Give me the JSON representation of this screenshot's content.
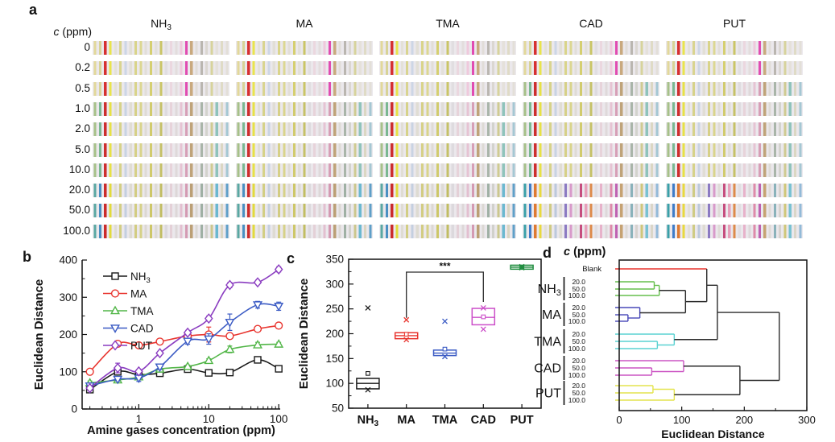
{
  "figure": {
    "panel_labels": {
      "a": "a",
      "b": "b",
      "c": "c",
      "d": "d"
    }
  },
  "panel_a": {
    "conc_header": {
      "italic": "c",
      "rest": " (ppm)"
    },
    "row_labels": [
      "0",
      "0.2",
      "0.5",
      "1.0",
      "2.0",
      "5.0",
      "10.0",
      "20.0",
      "50.0",
      "100.0"
    ],
    "gases": [
      {
        "key": "NH3",
        "name": [
          {
            "t": "NH"
          },
          {
            "t": "3",
            "sub": true
          }
        ]
      },
      {
        "key": "MA",
        "name": [
          {
            "t": "MA"
          }
        ]
      },
      {
        "key": "TMA",
        "name": [
          {
            "t": "TMA"
          }
        ]
      },
      {
        "key": "CAD",
        "name": [
          {
            "t": "CAD"
          }
        ]
      },
      {
        "key": "PUT",
        "name": [
          {
            "t": "PUT"
          }
        ]
      }
    ],
    "strip_bg": "#ebe8ec",
    "palettes": {
      "low": [
        "#e2d89a",
        "#d8d396",
        "#d63031",
        "#e9e44c",
        "#e4e1d8",
        "#d9d490",
        "#cdd6e6",
        "#e2dfd6",
        "#d9d48a",
        "#dcd792",
        "#e2ded8",
        "#d5cf70",
        "#e3e0da",
        "#cac566",
        "#e1dee1",
        "#ebd7df",
        "#e3dddd",
        "#efc9dc",
        "#e14cb2",
        "#c9a97e",
        "#e1ddd8",
        "#bab6b0",
        "#dbd7d1",
        "#d7d39c",
        "#e5e1da",
        "#dfdbc6",
        "#e3dfd8"
      ],
      "mid": [
        "#a6c189",
        "#7ab891",
        "#cd2e2e",
        "#e7e145",
        "#e1ded5",
        "#d6d289",
        "#c9d3e3",
        "#e0ddd4",
        "#d6d087",
        "#d9d48b",
        "#dfdbd5",
        "#d1cb6d",
        "#e0ddd7",
        "#c5c167",
        "#dedbdf",
        "#e7d3da",
        "#dfd9da",
        "#e6c3d3",
        "#d79fb7",
        "#bfa379",
        "#dddad5",
        "#a9b5a9",
        "#d3d3cd",
        "#cfcb92",
        "#8fc3bb",
        "#dbd7c3",
        "#a5c7d3"
      ],
      "high": [
        "#5aa8a2",
        "#4a90c2",
        "#cb2b2b",
        "#e2da3c",
        "#dfdcd3",
        "#d2ce84",
        "#c4cfe0",
        "#dedbd2",
        "#d2cc82",
        "#d6d187",
        "#dcd8d2",
        "#cdc768",
        "#dedbd5",
        "#c1bd62",
        "#dcd9dd",
        "#e4d0d7",
        "#ddd7d8",
        "#e3bfd0",
        "#d49ab3",
        "#bb9f75",
        "#dbd8d3",
        "#9fb0a4",
        "#d1d1cb",
        "#cbc78e",
        "#6bb8d0",
        "#d9d5c1",
        "#5f9fc8"
      ],
      "high_diamine": [
        "#3aa0a8",
        "#3f7cc8",
        "#de7a32",
        "#e8d93e",
        "#e3e0d7",
        "#cfcb84",
        "#bcc9dc",
        "#dedbd2",
        "#8b7ac2",
        "#d89aca",
        "#dfdbd7",
        "#c64d7e",
        "#e79fba",
        "#dd8a4a",
        "#e1dde1",
        "#e7b2ca",
        "#ded8da",
        "#de8aaa",
        "#bf62b2",
        "#c6a272",
        "#dedad6",
        "#8ab2ba",
        "#d6d2ce",
        "#cfc77a",
        "#79c2d2",
        "#dad6c8",
        "#93bad8"
      ]
    },
    "assignment": {
      "NH3": [
        "low",
        "low",
        "low",
        "mid",
        "mid",
        "mid",
        "mid",
        "high",
        "high",
        "high"
      ],
      "MA": [
        "low",
        "low",
        "low",
        "mid",
        "mid",
        "mid",
        "mid",
        "high",
        "high",
        "high"
      ],
      "TMA": [
        "low",
        "low",
        "low",
        "mid",
        "mid",
        "mid",
        "mid",
        "high",
        "high",
        "high"
      ],
      "CAD": [
        "low",
        "low",
        "mid",
        "mid",
        "mid",
        "mid",
        "mid",
        "high_diamine",
        "high_diamine",
        "high_diamine"
      ],
      "PUT": [
        "low",
        "low",
        "mid",
        "mid",
        "mid",
        "mid",
        "mid",
        "high_diamine",
        "high_diamine",
        "high_diamine"
      ]
    }
  },
  "chart_data": [
    {
      "id": "b",
      "type": "line",
      "xlabel": "Amine gases concentration (ppm)",
      "ylabel": "Euclidean Distance",
      "xscale": "log",
      "xlim": [
        0.155,
        105
      ],
      "ylim": [
        0,
        400
      ],
      "xticks": [
        1,
        10,
        100
      ],
      "yticks": [
        0,
        100,
        200,
        300,
        400
      ],
      "y_minor_step": 50,
      "legend_position": "top-left",
      "x": [
        0.2,
        0.5,
        1,
        2,
        5,
        10,
        20,
        50,
        100
      ],
      "series": [
        {
          "name": [
            {
              "t": "NH"
            },
            {
              "t": "3",
              "sub": true
            }
          ],
          "marker": "square",
          "color": "#1a1a1a",
          "values": [
            52,
            100,
            92,
            96,
            107,
            97,
            98,
            132,
            108
          ],
          "errors": [
            6,
            4,
            4,
            4,
            4,
            4,
            4,
            8,
            5
          ]
        },
        {
          "name": [
            {
              "t": "MA"
            }
          ],
          "marker": "circle",
          "color": "#e8352f",
          "values": [
            100,
            175,
            171,
            181,
            196,
            200,
            196,
            215,
            224
          ],
          "errors": [
            5,
            5,
            5,
            5,
            7,
            20,
            6,
            5,
            6
          ]
        },
        {
          "name": [
            {
              "t": "TMA"
            }
          ],
          "marker": "triangle-up",
          "color": "#52b648",
          "values": [
            70,
            78,
            86,
            107,
            114,
            130,
            160,
            172,
            174
          ],
          "errors": [
            5,
            4,
            6,
            5,
            4,
            5,
            9,
            7,
            5
          ]
        },
        {
          "name": [
            {
              "t": "CAD"
            }
          ],
          "marker": "triangle-down",
          "color": "#3b5bc4",
          "values": [
            62,
            80,
            83,
            113,
            182,
            188,
            233,
            280,
            276
          ],
          "errors": [
            4,
            5,
            9,
            7,
            8,
            14,
            22,
            9,
            11
          ]
        },
        {
          "name": [
            {
              "t": "PUT"
            }
          ],
          "marker": "diamond",
          "color": "#8a3cc0",
          "values": [
            56,
            110,
            101,
            150,
            205,
            243,
            333,
            340,
            375
          ],
          "errors": [
            4,
            13,
            5,
            5,
            6,
            7,
            7,
            6,
            7
          ]
        }
      ]
    },
    {
      "id": "c",
      "type": "box",
      "ylabel": "Euclidean Distance",
      "ylim": [
        50,
        350
      ],
      "yticks": [
        50,
        100,
        150,
        200,
        250,
        300,
        350
      ],
      "y_minor_step": 25,
      "categories": [
        {
          "key": "NH3",
          "name": [
            {
              "t": "NH"
            },
            {
              "t": "3",
              "sub": true
            }
          ]
        },
        {
          "key": "MA",
          "name": [
            {
              "t": "MA"
            }
          ]
        },
        {
          "key": "TMA",
          "name": [
            {
              "t": "TMA"
            }
          ]
        },
        {
          "key": "CAD",
          "name": [
            {
              "t": "CAD"
            }
          ]
        },
        {
          "key": "PUT",
          "name": [
            {
              "t": "PUT"
            }
          ]
        }
      ],
      "boxes": [
        {
          "color": "#1a1a1a",
          "q1": 89,
          "median": 100,
          "q3": 110,
          "mean": 120,
          "x_low": 87,
          "x_high": 252
        },
        {
          "color": "#e8352f",
          "q1": 190,
          "median": 196,
          "q3": 202,
          "mean": 199,
          "x_low": 188,
          "x_high": 228
        },
        {
          "color": "#3b5bc4",
          "q1": 156,
          "median": 161,
          "q3": 167,
          "mean": 169,
          "x_low": 154,
          "x_high": 225
        },
        {
          "color": "#cc4fc9",
          "q1": 218,
          "median": 233,
          "q3": 251,
          "mean": 234,
          "x_low": 209,
          "x_high": 252
        },
        {
          "color": "#1f8c3f",
          "q1": 330,
          "median": 334,
          "q3": 338,
          "mean": 334,
          "x_low": 333,
          "x_high": 335
        }
      ],
      "significance": {
        "label": "***",
        "from_index": 1,
        "to_index": 3,
        "bar_value": 324,
        "drop_from_value": 232,
        "drop_to_value": 264,
        "label_value": 330
      }
    },
    {
      "id": "d",
      "type": "dendrogram",
      "title": {
        "italic": "c",
        "rest": " (ppm)"
      },
      "xlabel": "Euclidean Distance",
      "xlim": [
        0,
        300
      ],
      "xticks": [
        0,
        100,
        200,
        300
      ],
      "x_minor_step": 50,
      "leaves": [
        {
          "id": "L0",
          "label": "Blank",
          "color": "#e8352f",
          "y": 11
        },
        {
          "id": "L1",
          "label": "20.0",
          "color": "#66bf4d",
          "y": 27
        },
        {
          "id": "L2",
          "label": "50.0",
          "color": "#66bf4d",
          "y": 36
        },
        {
          "id": "L3",
          "label": "100.0",
          "color": "#66bf4d",
          "y": 44
        },
        {
          "id": "L4",
          "label": "20.0",
          "color": "#4848b8",
          "y": 59
        },
        {
          "id": "L5",
          "label": "50.0",
          "color": "#4848b8",
          "y": 68
        },
        {
          "id": "L6",
          "label": "100.0",
          "color": "#4848b8",
          "y": 76
        },
        {
          "id": "L7",
          "label": "20.0",
          "color": "#5ad2d2",
          "y": 92
        },
        {
          "id": "L8",
          "label": "50.0",
          "color": "#5ad2d2",
          "y": 101
        },
        {
          "id": "L9",
          "label": "100.0",
          "color": "#5ad2d2",
          "y": 110
        },
        {
          "id": "L10",
          "label": "20.0",
          "color": "#cc55c3",
          "y": 125
        },
        {
          "id": "L11",
          "label": "50.0",
          "color": "#cc55c3",
          "y": 134
        },
        {
          "id": "L12",
          "label": "100.0",
          "color": "#cc55c3",
          "y": 143
        },
        {
          "id": "L13",
          "label": "20.0",
          "color": "#e4e44e",
          "y": 156
        },
        {
          "id": "L14",
          "label": "50.0",
          "color": "#e4e44e",
          "y": 165
        },
        {
          "id": "L15",
          "label": "100.0",
          "color": "#e4e44e",
          "y": 174
        }
      ],
      "groups": [
        {
          "name": [
            {
              "t": "NH"
            },
            {
              "t": "3",
              "sub": true
            }
          ],
          "first": "L1",
          "last": "L3"
        },
        {
          "name": [
            {
              "t": "MA"
            }
          ],
          "first": "L4",
          "last": "L6"
        },
        {
          "name": [
            {
              "t": "TMA"
            }
          ],
          "first": "L7",
          "last": "L9"
        },
        {
          "name": [
            {
              "t": "CAD"
            }
          ],
          "first": "L10",
          "last": "L12"
        },
        {
          "name": [
            {
              "t": "PUT"
            }
          ],
          "first": "L13",
          "last": "L15"
        }
      ],
      "merges": [
        {
          "id": "m0",
          "a": "L1",
          "b": "L2",
          "d": 56,
          "color": "#66bf4d"
        },
        {
          "id": "m1",
          "a": "m0",
          "b": "L3",
          "d": 64,
          "color": "#66bf4d"
        },
        {
          "id": "m2",
          "a": "L5",
          "b": "L6",
          "d": 14,
          "color": "#4848b8"
        },
        {
          "id": "m3",
          "a": "L4",
          "b": "m2",
          "d": 33,
          "color": "#4848b8"
        },
        {
          "id": "m4",
          "a": "L8",
          "b": "L9",
          "d": 61,
          "color": "#5ad2d2"
        },
        {
          "id": "m5",
          "a": "L7",
          "b": "m4",
          "d": 88,
          "color": "#5ad2d2"
        },
        {
          "id": "m6",
          "a": "L11",
          "b": "L12",
          "d": 52,
          "color": "#cc55c3"
        },
        {
          "id": "m7",
          "a": "L10",
          "b": "m6",
          "d": 103,
          "color": "#cc55c3"
        },
        {
          "id": "m8",
          "a": "L13",
          "b": "L14",
          "d": 54,
          "color": "#e4e44e"
        },
        {
          "id": "m9",
          "a": "m8",
          "b": "L15",
          "d": 88,
          "color": "#e4e44e"
        },
        {
          "id": "m10",
          "a": "m1",
          "b": "m3",
          "d": 106,
          "color": "#2b2b2b"
        },
        {
          "id": "m11",
          "a": "L0",
          "b": "m10",
          "d": 140,
          "color": "#2b2b2b"
        },
        {
          "id": "m12",
          "a": "m11",
          "b": "m5",
          "d": 157,
          "color": "#2b2b2b"
        },
        {
          "id": "m13",
          "a": "m7",
          "b": "m9",
          "d": 193,
          "color": "#2b2b2b"
        },
        {
          "id": "m14",
          "a": "m12",
          "b": "m13",
          "d": 256,
          "color": "#2b2b2b"
        }
      ]
    }
  ]
}
